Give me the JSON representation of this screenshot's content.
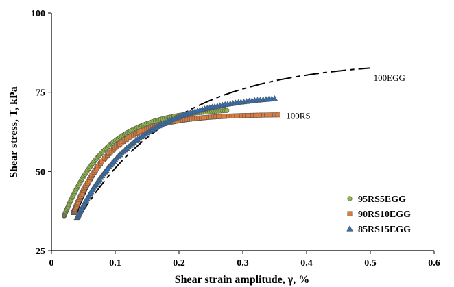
{
  "chart_data": {
    "type": "scatter",
    "xlabel": "Shear strain amplitude, γ, %",
    "ylabel": "Shear stress, T, kPa",
    "xlim": [
      0,
      0.6
    ],
    "ylim": [
      25,
      100
    ],
    "xticks": [
      0,
      0.1,
      0.2,
      0.3,
      0.4,
      0.5,
      0.6
    ],
    "yticks": [
      25,
      50,
      75,
      100
    ],
    "xtick_labels": [
      "0",
      "0.1",
      "0.2",
      "0.3",
      "0.4",
      "0.5",
      "0.6"
    ],
    "ytick_labels": [
      "25",
      "50",
      "75",
      "100"
    ],
    "legend_position": "bottom-right",
    "series": [
      {
        "name": "95RS5EGG",
        "kind": "points",
        "marker": "circle",
        "color": "#8db547",
        "x_start": 0.02,
        "x_end": 0.275,
        "count": 120,
        "y0": 36,
        "a": 34,
        "b": 0.067
      },
      {
        "name": "90RS10EGG",
        "kind": "points",
        "marker": "square",
        "color": "#e07b39",
        "x_start": 0.035,
        "x_end": 0.355,
        "count": 115,
        "y0": 37,
        "a": 31,
        "b": 0.06
      },
      {
        "name": "85RS15EGG",
        "kind": "points",
        "marker": "triangle",
        "color": "#2e6fb6",
        "x_start": 0.04,
        "x_end": 0.35,
        "count": 110,
        "y0": 35.5,
        "a": 39,
        "b": 0.095
      },
      {
        "name": "100RS",
        "kind": "line",
        "style": "solid",
        "color": "#000000",
        "x_start": 0.04,
        "x_end": 0.35,
        "y0": 37,
        "a": 31,
        "b": 0.058
      },
      {
        "name": "100EGG",
        "kind": "line",
        "style": "dashed",
        "color": "#000000",
        "x_start": 0.045,
        "x_end": 0.5,
        "y0": 36,
        "a": 49,
        "b": 0.15
      }
    ],
    "annotations": [
      {
        "text": "100EGG",
        "x": 0.505,
        "y": 79.5
      },
      {
        "text": "100RS",
        "x": 0.368,
        "y": 67.5
      }
    ]
  }
}
